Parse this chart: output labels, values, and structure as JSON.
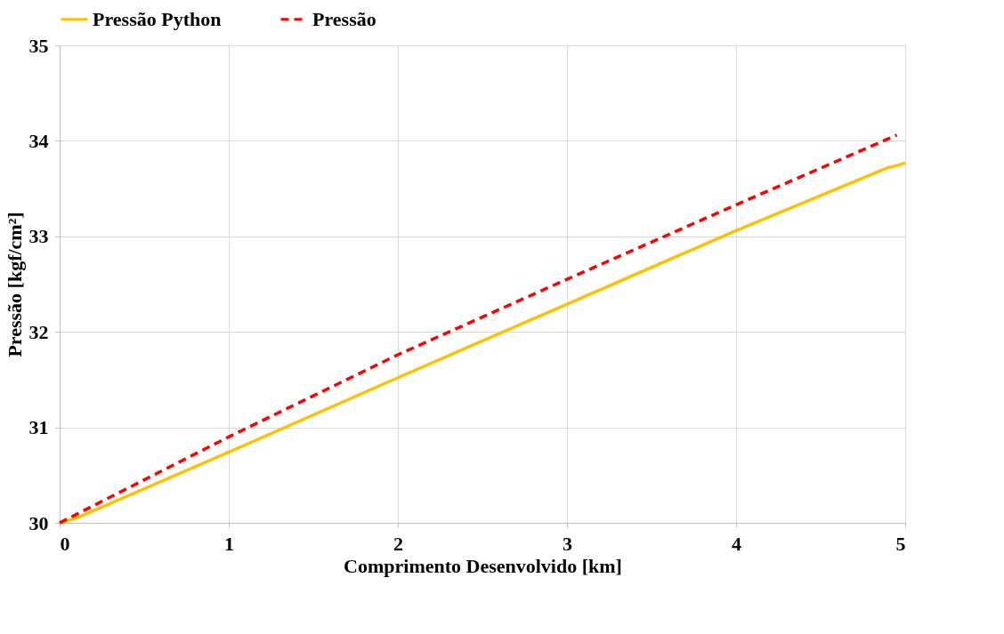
{
  "chart_data": {
    "type": "line",
    "xlabel": "Comprimento Desenvolvido [km]",
    "ylabel": "Pressão [kgf/cm²]",
    "xlim": [
      0,
      5
    ],
    "xticks": [
      0,
      1,
      2,
      3,
      4,
      5
    ],
    "ylim": [
      30,
      35
    ],
    "yticks": [
      30,
      31,
      32,
      33,
      34,
      35
    ],
    "grid": true,
    "legend": "top",
    "series": [
      {
        "name": "Pressão Python",
        "color": "#ffc000",
        "line_style": "solid",
        "x": [
          0,
          0.1,
          1,
          2,
          3,
          4,
          4.9,
          4.95,
          5
        ],
        "values": [
          30,
          30.05,
          30.74,
          31.52,
          32.29,
          33.06,
          33.72,
          33.74,
          33.77
        ]
      },
      {
        "name": "Pressão",
        "color": "#ff0000",
        "line_style": "dashed",
        "x": [
          0,
          1,
          2,
          3,
          4,
          4.95
        ],
        "values": [
          30,
          30.9,
          31.76,
          32.55,
          33.33,
          34.06
        ]
      }
    ]
  }
}
